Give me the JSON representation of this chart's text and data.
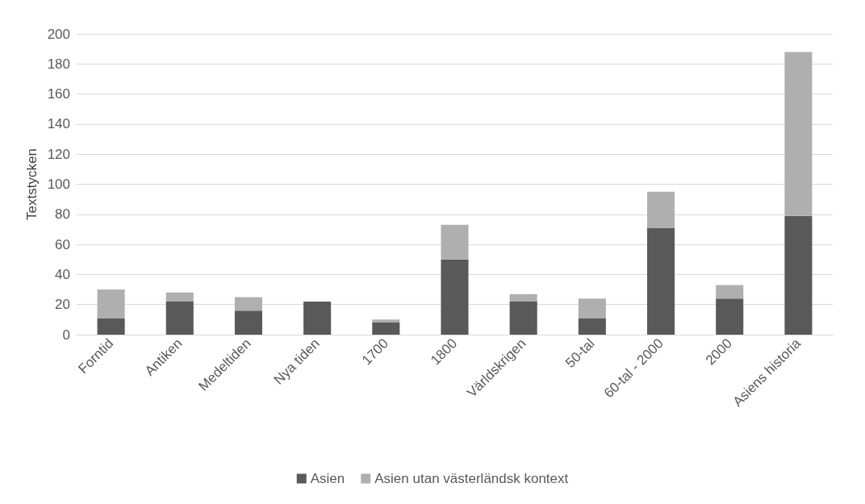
{
  "chart_data": {
    "type": "bar",
    "stacked": true,
    "ylabel": "Textstycken",
    "categories": [
      "Forntid",
      "Antiken",
      "Medeltiden",
      "Nya tiden",
      "1700",
      "1800",
      "Världskrigen",
      "50-tal",
      "60-tal - 2000",
      "2000",
      "Asiens historia"
    ],
    "series": [
      {
        "name": "Asien",
        "color": "#595959",
        "values": [
          11,
          22,
          16,
          22,
          8,
          50,
          22,
          11,
          71,
          24,
          79
        ]
      },
      {
        "name": "Asien utan västerländsk kontext",
        "color": "#afafaf",
        "values": [
          19,
          6,
          9,
          0,
          2,
          23,
          5,
          13,
          24,
          9,
          109
        ]
      }
    ],
    "ylim": [
      0,
      200
    ],
    "yticks": [
      0,
      20,
      40,
      60,
      80,
      100,
      120,
      140,
      160,
      180,
      200
    ],
    "grid": "y",
    "legend": "bottom"
  }
}
